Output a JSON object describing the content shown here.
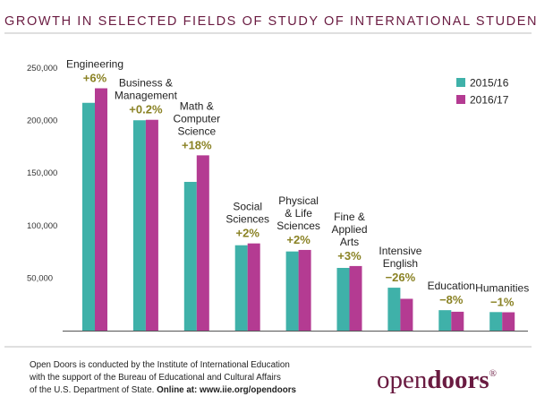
{
  "chart_data": {
    "type": "bar",
    "title": "GROWTH IN SELECTED FIELDS OF STUDY OF INTERNATIONAL STUDENTS",
    "xlabel": "",
    "ylabel": "",
    "ylim": [
      0,
      250000
    ],
    "yticks": [
      "50,000",
      "100,000",
      "150,000",
      "200,000",
      "250,000"
    ],
    "ytick_values": [
      50000,
      100000,
      150000,
      200000,
      250000
    ],
    "grid": false,
    "legend_position": "top-right",
    "categories": [
      {
        "label_lines": [
          "Engineering"
        ],
        "change": "+6%"
      },
      {
        "label_lines": [
          "Business &",
          "Management"
        ],
        "change": "+0.2%"
      },
      {
        "label_lines": [
          "Math &",
          "Computer",
          "Science"
        ],
        "change": "+18%"
      },
      {
        "label_lines": [
          "Social",
          "Sciences"
        ],
        "change": "+2%"
      },
      {
        "label_lines": [
          "Physical",
          "& Life",
          "Sciences"
        ],
        "change": "+2%"
      },
      {
        "label_lines": [
          "Fine &",
          "Applied",
          "Arts"
        ],
        "change": "+3%"
      },
      {
        "label_lines": [
          "Intensive",
          "English"
        ],
        "change": "−26%"
      },
      {
        "label_lines": [
          "Education"
        ],
        "change": "−8%"
      },
      {
        "label_lines": [
          "Humanities"
        ],
        "change": "−1%"
      }
    ],
    "series": [
      {
        "name": "2015/16",
        "color": "#3fb1a9",
        "values": [
          216932,
          200312,
          141651,
          81304,
          75385,
          59736,
          40877,
          19483,
          17664
        ]
      },
      {
        "name": "2016/17",
        "color": "#b43b92",
        "values": [
          230780,
          200754,
          166919,
          83046,
          76838,
          61506,
          30309,
          17993,
          17474
        ]
      }
    ]
  },
  "footer": {
    "line1": "Open Doors is conducted by the Institute of International Education",
    "line2": "with the support of the Bureau of Educational and Cultural Affairs",
    "line3": "of the U.S. Department of State.",
    "line3_bold": "Online at: www.iie.org/opendoors"
  },
  "logo": {
    "part1": "open",
    "part2": "doors",
    "mark": "®"
  }
}
